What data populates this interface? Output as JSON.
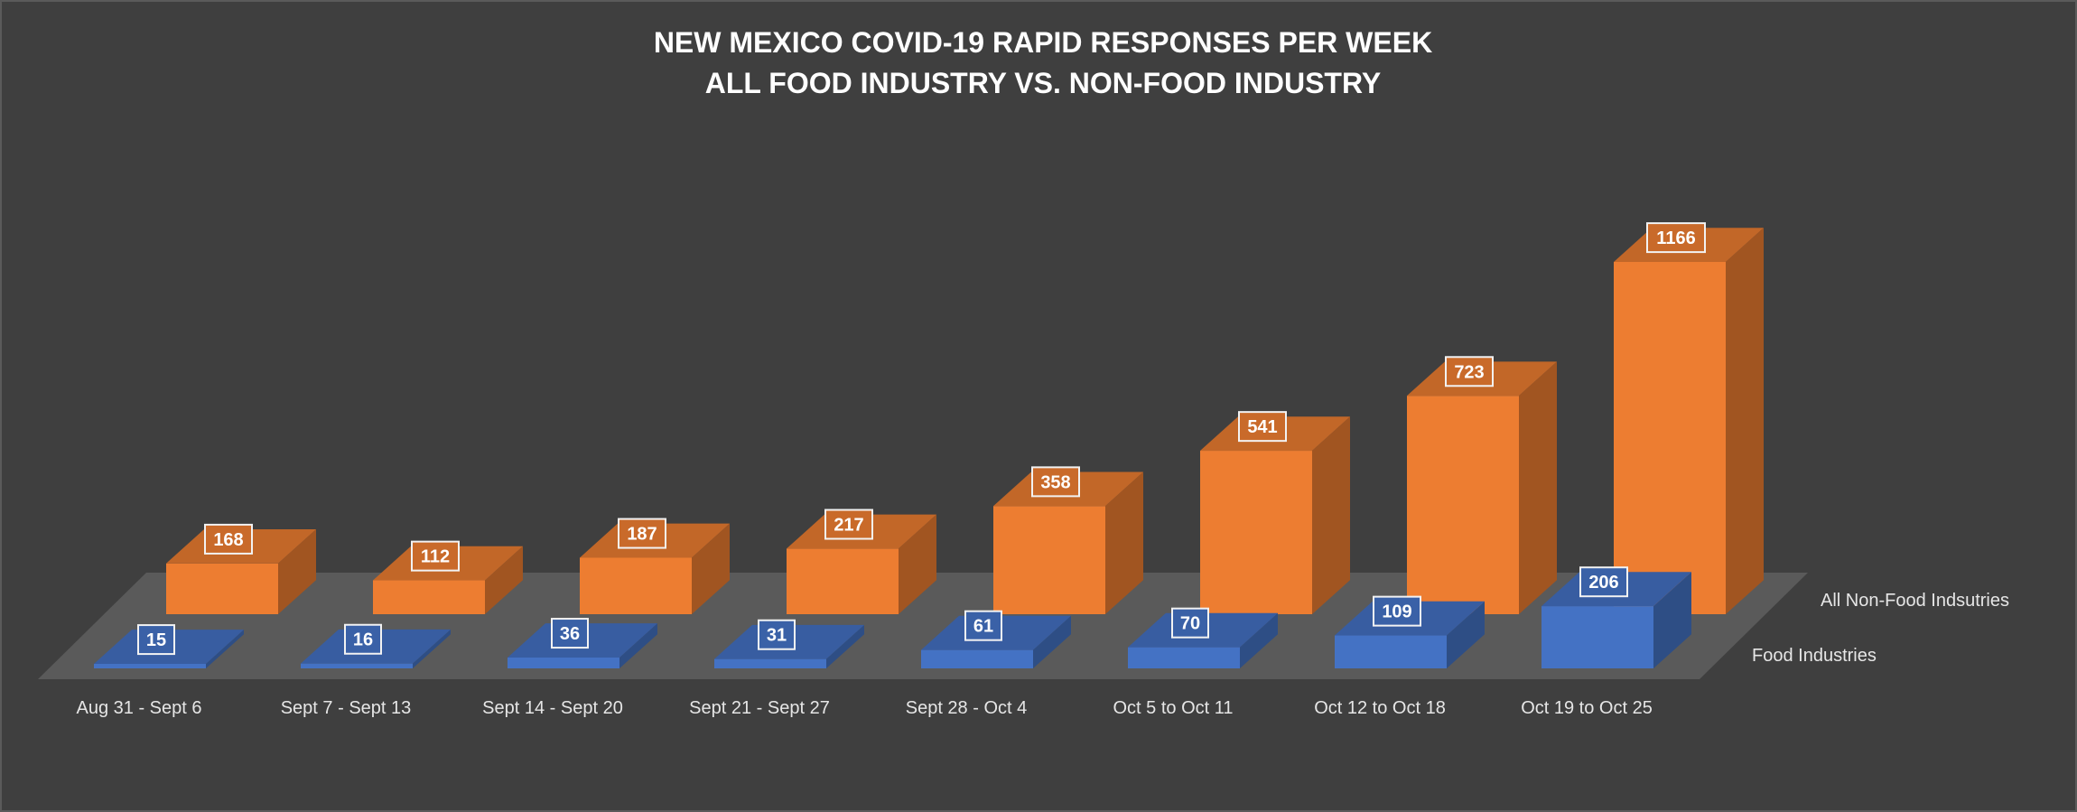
{
  "chart_data": {
    "type": "bar",
    "title_lines": [
      "NEW MEXICO COVID-19 RAPID RESPONSES PER WEEK",
      "ALL FOOD INDUSTRY VS. NON-FOOD INDUSTRY"
    ],
    "categories": [
      "Aug 31 - Sept 6",
      "Sept 7 - Sept 13",
      "Sept 14 - Sept 20",
      "Sept 21 - Sept 27",
      "Sept 28 - Oct 4",
      "Oct 5 to Oct 11",
      "Oct 12 to Oct 18",
      "Oct 19 to Oct 25"
    ],
    "series": [
      {
        "name": "Food Industries",
        "color": "#4472c4",
        "values": [
          15,
          16,
          36,
          31,
          61,
          70,
          109,
          206
        ]
      },
      {
        "name": "All Non-Food Indsutries",
        "color": "#ed7d31",
        "values": [
          168,
          112,
          187,
          217,
          358,
          541,
          723,
          1166
        ]
      }
    ],
    "style": "3d-column",
    "grid": false,
    "legend": "none"
  }
}
